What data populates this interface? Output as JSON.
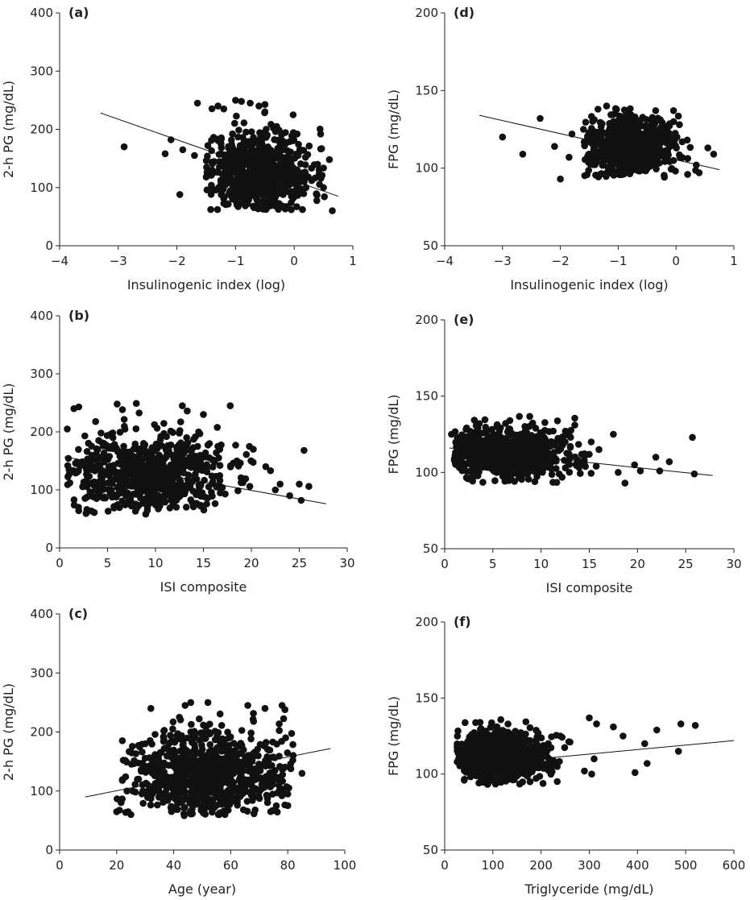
{
  "chart_data": [
    {
      "id": "a",
      "type": "scatter",
      "panel_label": "(a)",
      "xlabel": "Insulinogenic index (log)",
      "ylabel": "2-h PG (mg/dL)",
      "xlim": [
        -4,
        1
      ],
      "ylim": [
        0,
        400
      ],
      "xticks": [
        -4,
        -3,
        -2,
        -1,
        0,
        1
      ],
      "xtick_labels": [
        "−4",
        "−3",
        "−2",
        "−1",
        "0",
        "1"
      ],
      "yticks": [
        0,
        100,
        200,
        300,
        400
      ],
      "ytick_labels": [
        "0",
        "100",
        "200",
        "300",
        "400"
      ],
      "trend": {
        "x": [
          -3.3,
          0.75
        ],
        "y": [
          228,
          85
        ]
      },
      "points": {
        "x": [
          -2.9,
          -2.2,
          -2.1,
          -1.95,
          -1.9,
          -1.7,
          -1.65,
          -1.5,
          -1.3,
          -1.2,
          -1.0,
          -0.9,
          -0.75,
          -0.6,
          -0.5,
          -0.3,
          -0.2,
          -0.1,
          0.1,
          0.3,
          0.5,
          0.6,
          0.65,
          -1.1,
          -0.8,
          -0.45,
          -0.25,
          -0.7,
          -0.35,
          -0.05,
          0.2,
          -1.4,
          -0.95,
          -0.55,
          -0.15,
          0.4
        ],
        "y": [
          170,
          158,
          182,
          88,
          165,
          155,
          245,
          118,
          240,
          235,
          250,
          248,
          245,
          240,
          230,
          205,
          180,
          150,
          125,
          112,
          100,
          148,
          60,
          90,
          72,
          70,
          66,
          68,
          80,
          62,
          100,
          130,
          110,
          95,
          175,
          140
        ]
      },
      "cluster": {
        "x_center": -0.6,
        "x_spread": 0.45,
        "y_center": 125,
        "y_spread": 38,
        "y_min": 62,
        "y_max": 250,
        "x_min": -1.5,
        "x_max": 0.55,
        "count": 650,
        "seed": 11
      }
    },
    {
      "id": "b",
      "type": "scatter",
      "panel_label": "(b)",
      "xlabel": "ISI composite",
      "ylabel": "2-h PG (mg/dL)",
      "xlim": [
        0,
        30
      ],
      "ylim": [
        0,
        400
      ],
      "xticks": [
        0,
        5,
        10,
        15,
        20,
        25,
        30
      ],
      "xtick_labels": [
        "0",
        "5",
        "10",
        "15",
        "20",
        "25",
        "30"
      ],
      "yticks": [
        0,
        100,
        200,
        300,
        400
      ],
      "ytick_labels": [
        "0",
        "100",
        "200",
        "300",
        "400"
      ],
      "trend": {
        "x": [
          0.5,
          27.8
        ],
        "y": [
          157,
          76
        ]
      },
      "points": {
        "x": [
          0.8,
          1.5,
          2.0,
          6.0,
          8.0,
          12.8,
          15.0,
          17.8,
          19.8,
          20.2,
          21.5,
          22.0,
          23.0,
          24.0,
          25.0,
          25.5,
          26.0,
          25.2,
          18.5,
          16.5,
          14.5,
          22.5
        ],
        "y": [
          205,
          240,
          243,
          248,
          249,
          245,
          230,
          245,
          175,
          170,
          140,
          133,
          110,
          90,
          110,
          168,
          106,
          82,
          150,
          175,
          200,
          100
        ]
      },
      "cluster": {
        "x_center": 8.5,
        "x_spread": 4.5,
        "y_center": 125,
        "y_spread": 35,
        "y_min": 58,
        "y_max": 250,
        "x_min": 0.8,
        "x_max": 21,
        "count": 700,
        "seed": 23
      }
    },
    {
      "id": "c",
      "type": "scatter",
      "panel_label": "(c)",
      "xlabel": "Age (year)",
      "ylabel": "2-h PG (mg/dL)",
      "xlim": [
        0,
        100
      ],
      "ylim": [
        0,
        400
      ],
      "xticks": [
        0,
        20,
        40,
        60,
        80,
        100
      ],
      "xtick_labels": [
        "0",
        "20",
        "40",
        "60",
        "80",
        "100"
      ],
      "yticks": [
        0,
        100,
        200,
        300,
        400
      ],
      "ytick_labels": [
        "0",
        "100",
        "200",
        "300",
        "400"
      ],
      "trend": {
        "x": [
          9,
          95
        ],
        "y": [
          90,
          172
        ]
      },
      "points": {
        "x": [
          20,
          22,
          24,
          25,
          28,
          30,
          32,
          44,
          46,
          52,
          58,
          66,
          72,
          78,
          79,
          85,
          76,
          80,
          56,
          42
        ],
        "y": [
          65,
          118,
          65,
          60,
          175,
          180,
          240,
          245,
          250,
          250,
          60,
          245,
          240,
          245,
          238,
          130,
          75,
          95,
          60,
          225
        ]
      },
      "cluster": {
        "x_center": 52,
        "x_spread": 14,
        "y_center": 130,
        "y_spread": 38,
        "y_min": 58,
        "y_max": 250,
        "x_min": 19,
        "x_max": 82,
        "count": 800,
        "seed": 37
      }
    },
    {
      "id": "d",
      "type": "scatter",
      "panel_label": "(d)",
      "xlabel": "Insulinogenic index (log)",
      "ylabel": "FPG (mg/dL)",
      "xlim": [
        -4,
        1
      ],
      "ylim": [
        50,
        200
      ],
      "xticks": [
        -4,
        -3,
        -2,
        -1,
        0,
        1
      ],
      "xtick_labels": [
        "−4",
        "−3",
        "−2",
        "−1",
        "0",
        "1"
      ],
      "yticks": [
        50,
        100,
        150,
        200
      ],
      "ytick_labels": [
        "50",
        "100",
        "150",
        "200"
      ],
      "trend": {
        "x": [
          -3.4,
          0.75
        ],
        "y": [
          134,
          99
        ]
      },
      "points": {
        "x": [
          -3.0,
          -2.65,
          -2.35,
          -2.0,
          -2.1,
          -1.85,
          -1.8,
          -1.6,
          -1.5,
          0.2,
          0.4,
          0.55,
          0.65,
          0.35,
          -1.35,
          -1.2
        ],
        "y": [
          120,
          109,
          132,
          93,
          114,
          107,
          122,
          125,
          109,
          96,
          97,
          113,
          109,
          102,
          138,
          140
        ]
      },
      "cluster": {
        "x_center": -0.8,
        "x_spread": 0.4,
        "y_center": 114,
        "y_spread": 10,
        "y_min": 94,
        "y_max": 140,
        "x_min": -1.6,
        "x_max": 0.4,
        "count": 750,
        "seed": 41
      }
    },
    {
      "id": "e",
      "type": "scatter",
      "panel_label": "(e)",
      "xlabel": "ISI composite",
      "ylabel": "FPG (mg/dL)",
      "xlim": [
        0,
        30
      ],
      "ylim": [
        50,
        200
      ],
      "xticks": [
        0,
        5,
        10,
        15,
        20,
        25,
        30
      ],
      "xtick_labels": [
        "0",
        "5",
        "10",
        "15",
        "20",
        "25",
        "30"
      ],
      "yticks": [
        50,
        100,
        150,
        200
      ],
      "ytick_labels": [
        "50",
        "100",
        "150",
        "200"
      ],
      "trend": {
        "x": [
          0.5,
          27.8
        ],
        "y": [
          116,
          98
        ]
      },
      "points": {
        "x": [
          0.7,
          1.0,
          1.3,
          17.5,
          18.0,
          18.7,
          19.7,
          20.3,
          21.9,
          22.3,
          23.3,
          25.7,
          25.9,
          16.0,
          15.2,
          13.5
        ],
        "y": [
          125,
          108,
          118,
          125,
          100,
          93,
          105,
          101,
          110,
          101,
          107,
          123,
          99,
          115,
          120,
          131
        ]
      },
      "cluster": {
        "x_center": 6.5,
        "x_spread": 3.8,
        "y_center": 112,
        "y_spread": 9,
        "y_min": 93,
        "y_max": 140,
        "x_min": 1.0,
        "x_max": 16,
        "count": 750,
        "seed": 53
      }
    },
    {
      "id": "f",
      "type": "scatter",
      "panel_label": "(f)",
      "xlabel": "Triglyceride (mg/dL)",
      "ylabel": "FPG (mg/dL)",
      "xlim": [
        0,
        600
      ],
      "ylim": [
        50,
        200
      ],
      "xticks": [
        0,
        100,
        200,
        300,
        400,
        500,
        600
      ],
      "xtick_labels": [
        "0",
        "100",
        "200",
        "300",
        "400",
        "500",
        "600"
      ],
      "yticks": [
        50,
        100,
        150,
        200
      ],
      "ytick_labels": [
        "50",
        "100",
        "150",
        "200"
      ],
      "trend": {
        "x": [
          25,
          600
        ],
        "y": [
          105,
          122
        ]
      },
      "points": {
        "x": [
          300,
          305,
          315,
          350,
          370,
          395,
          415,
          420,
          440,
          485,
          490,
          520,
          310,
          290,
          260,
          240,
          215
        ],
        "y": [
          137,
          100,
          133,
          131,
          125,
          101,
          120,
          107,
          129,
          115,
          133,
          132,
          110,
          102,
          121,
          125,
          120
        ]
      },
      "cluster": {
        "x_center": 105,
        "x_spread": 55,
        "y_center": 110,
        "y_spread": 9,
        "y_min": 93,
        "y_max": 140,
        "x_min": 25,
        "x_max": 280,
        "count": 650,
        "seed": 67
      }
    }
  ]
}
